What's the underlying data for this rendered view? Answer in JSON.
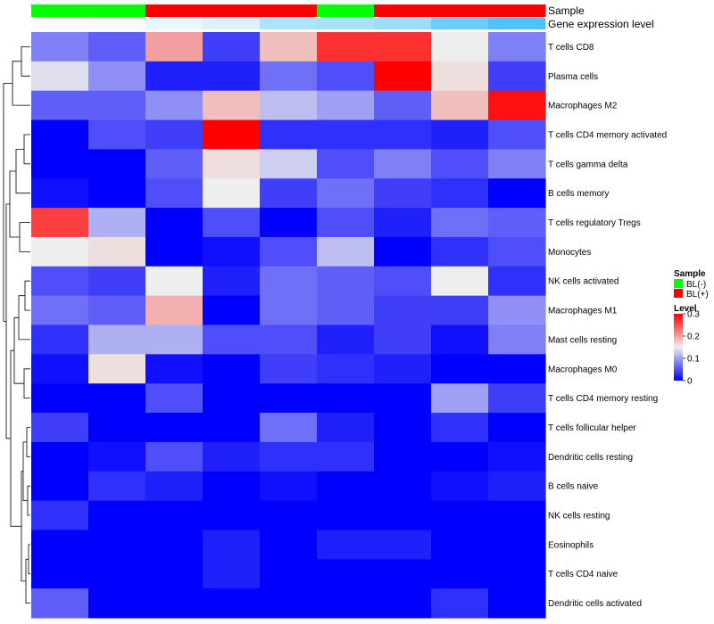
{
  "chart_data": {
    "type": "heatmap",
    "title": "",
    "columns": 9,
    "rows": [
      "T cells CD8",
      "Plasma cells",
      "Macrophages M2",
      "T cells CD4 memory activated",
      "T cells gamma delta",
      "B cells memory",
      "T cells regulatory  Tregs",
      "Monocytes",
      "NK cells activated",
      "Macrophages M1",
      "Mast cells resting",
      "Macrophages M0",
      "T cells CD4 memory resting",
      "T cells follicular helper",
      "Dendritic cells resting",
      "B cells naive",
      "NK cells resting",
      "Eosinophils",
      "T cells CD4 naive",
      "Dendritic cells activated"
    ],
    "values": [
      [
        0.08,
        0.06,
        0.2,
        0.04,
        0.18,
        0.27,
        0.27,
        0.15,
        0.08
      ],
      [
        0.14,
        0.09,
        0.02,
        0.02,
        0.07,
        0.05,
        0.3,
        0.16,
        0.04
      ],
      [
        0.06,
        0.06,
        0.09,
        0.18,
        0.12,
        0.1,
        0.06,
        0.18,
        0.29
      ],
      [
        0.0,
        0.05,
        0.04,
        0.3,
        0.03,
        0.03,
        0.03,
        0.02,
        0.05
      ],
      [
        0.0,
        0.0,
        0.06,
        0.16,
        0.13,
        0.05,
        0.08,
        0.05,
        0.08
      ],
      [
        0.01,
        0.0,
        0.05,
        0.15,
        0.04,
        0.07,
        0.04,
        0.03,
        0.0
      ],
      [
        0.26,
        0.11,
        0.0,
        0.05,
        0.0,
        0.05,
        0.02,
        0.07,
        0.06
      ],
      [
        0.15,
        0.16,
        0.0,
        0.01,
        0.05,
        0.12,
        0.0,
        0.03,
        0.05
      ],
      [
        0.05,
        0.04,
        0.15,
        0.02,
        0.07,
        0.06,
        0.05,
        0.15,
        0.03
      ],
      [
        0.07,
        0.06,
        0.19,
        0.0,
        0.07,
        0.06,
        0.04,
        0.04,
        0.09
      ],
      [
        0.03,
        0.11,
        0.11,
        0.05,
        0.05,
        0.02,
        0.04,
        0.01,
        0.08
      ],
      [
        0.01,
        0.16,
        0.01,
        0.0,
        0.04,
        0.03,
        0.02,
        0.0,
        0.0
      ],
      [
        0.0,
        0.0,
        0.05,
        0.0,
        0.0,
        0.0,
        0.0,
        0.1,
        0.04
      ],
      [
        0.04,
        0.0,
        0.0,
        0.0,
        0.07,
        0.02,
        0.0,
        0.03,
        0.0
      ],
      [
        0.0,
        0.01,
        0.05,
        0.02,
        0.03,
        0.03,
        0.0,
        0.0,
        0.01
      ],
      [
        0.0,
        0.03,
        0.02,
        0.0,
        0.01,
        0.0,
        0.0,
        0.01,
        0.02
      ],
      [
        0.03,
        0.0,
        0.0,
        0.0,
        0.0,
        0.0,
        0.0,
        0.0,
        0.0
      ],
      [
        0.0,
        0.0,
        0.0,
        0.02,
        0.0,
        0.02,
        0.02,
        0.0,
        0.0
      ],
      [
        0.0,
        0.0,
        0.0,
        0.02,
        0.0,
        0.0,
        0.0,
        0.0,
        0.0
      ],
      [
        0.06,
        0.0,
        0.0,
        0.0,
        0.0,
        0.0,
        0.0,
        0.03,
        0.0
      ]
    ],
    "annotations": {
      "sample": {
        "label": "Sample",
        "values": [
          "BL(-)",
          "BL(-)",
          "BL(+)",
          "BL(+)",
          "BL(+)",
          "BL(-)",
          "BL(+)",
          "BL(+)",
          "BL(+)"
        ]
      },
      "gene_expression_level": {
        "label": "Gene expression level",
        "values": [
          0.02,
          0.03,
          0.06,
          0.08,
          0.16,
          0.17,
          0.19,
          0.27,
          0.32
        ]
      }
    },
    "legend": {
      "sample_title": "Sample",
      "sample_entries": [
        {
          "label": "BL(-)",
          "color": "#00ff00"
        },
        {
          "label": "BL(+)",
          "color": "#ff0000"
        }
      ],
      "level_title": "Level",
      "level_ticks": [
        {
          "value": 0.3,
          "label": "0.3"
        },
        {
          "value": 0.2,
          "label": "0.2"
        },
        {
          "value": 0.1,
          "label": "0.1"
        },
        {
          "value": 0.0,
          "label": "0"
        }
      ],
      "level_range": [
        0,
        0.3
      ],
      "placement": "right"
    },
    "colors": {
      "low": "#0000ff",
      "mid": "#eeeeee",
      "high": "#ff0000",
      "mid_value": 0.15,
      "annotation_low": "#ffffff",
      "annotation_high": "#4fc3f7"
    },
    "row_dendrogram": true,
    "column_dendrogram": false
  }
}
